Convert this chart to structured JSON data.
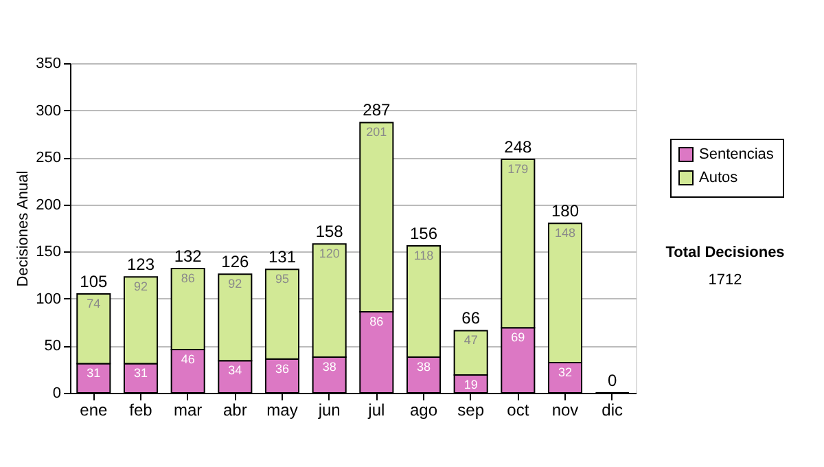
{
  "chart_data": {
    "type": "bar",
    "stacked": true,
    "ylabel": "Decisiones Anual",
    "categories": [
      "ene",
      "feb",
      "mar",
      "abr",
      "may",
      "jun",
      "jul",
      "ago",
      "sep",
      "oct",
      "nov",
      "dic"
    ],
    "series": [
      {
        "name": "Sentencias",
        "color": "#dc78c4",
        "values": [
          31,
          31,
          46,
          34,
          36,
          38,
          86,
          38,
          19,
          69,
          32,
          0
        ],
        "value_labels": [
          "31",
          "31",
          "46",
          "34",
          "36",
          "38",
          "86",
          "38",
          "19",
          "69",
          "32",
          null
        ]
      },
      {
        "name": "Autos",
        "color": "#d2e996",
        "values": [
          74,
          92,
          86,
          92,
          95,
          120,
          201,
          118,
          47,
          179,
          148,
          0
        ],
        "value_labels": [
          "74",
          "92",
          "86",
          "92",
          "95",
          "120",
          "201",
          "118",
          "47",
          "179",
          "148",
          null
        ]
      }
    ],
    "totals": [
      "105",
      "123",
      "132",
      "126",
      "131",
      "158",
      "287",
      "156",
      "66",
      "248",
      "180",
      "0"
    ],
    "ylim": [
      0,
      350
    ],
    "yticks": [
      0,
      50,
      100,
      150,
      200,
      250,
      300,
      350
    ],
    "grid": "y",
    "legend": "right",
    "annotations": [
      "Total Decisiones",
      "1712"
    ]
  }
}
